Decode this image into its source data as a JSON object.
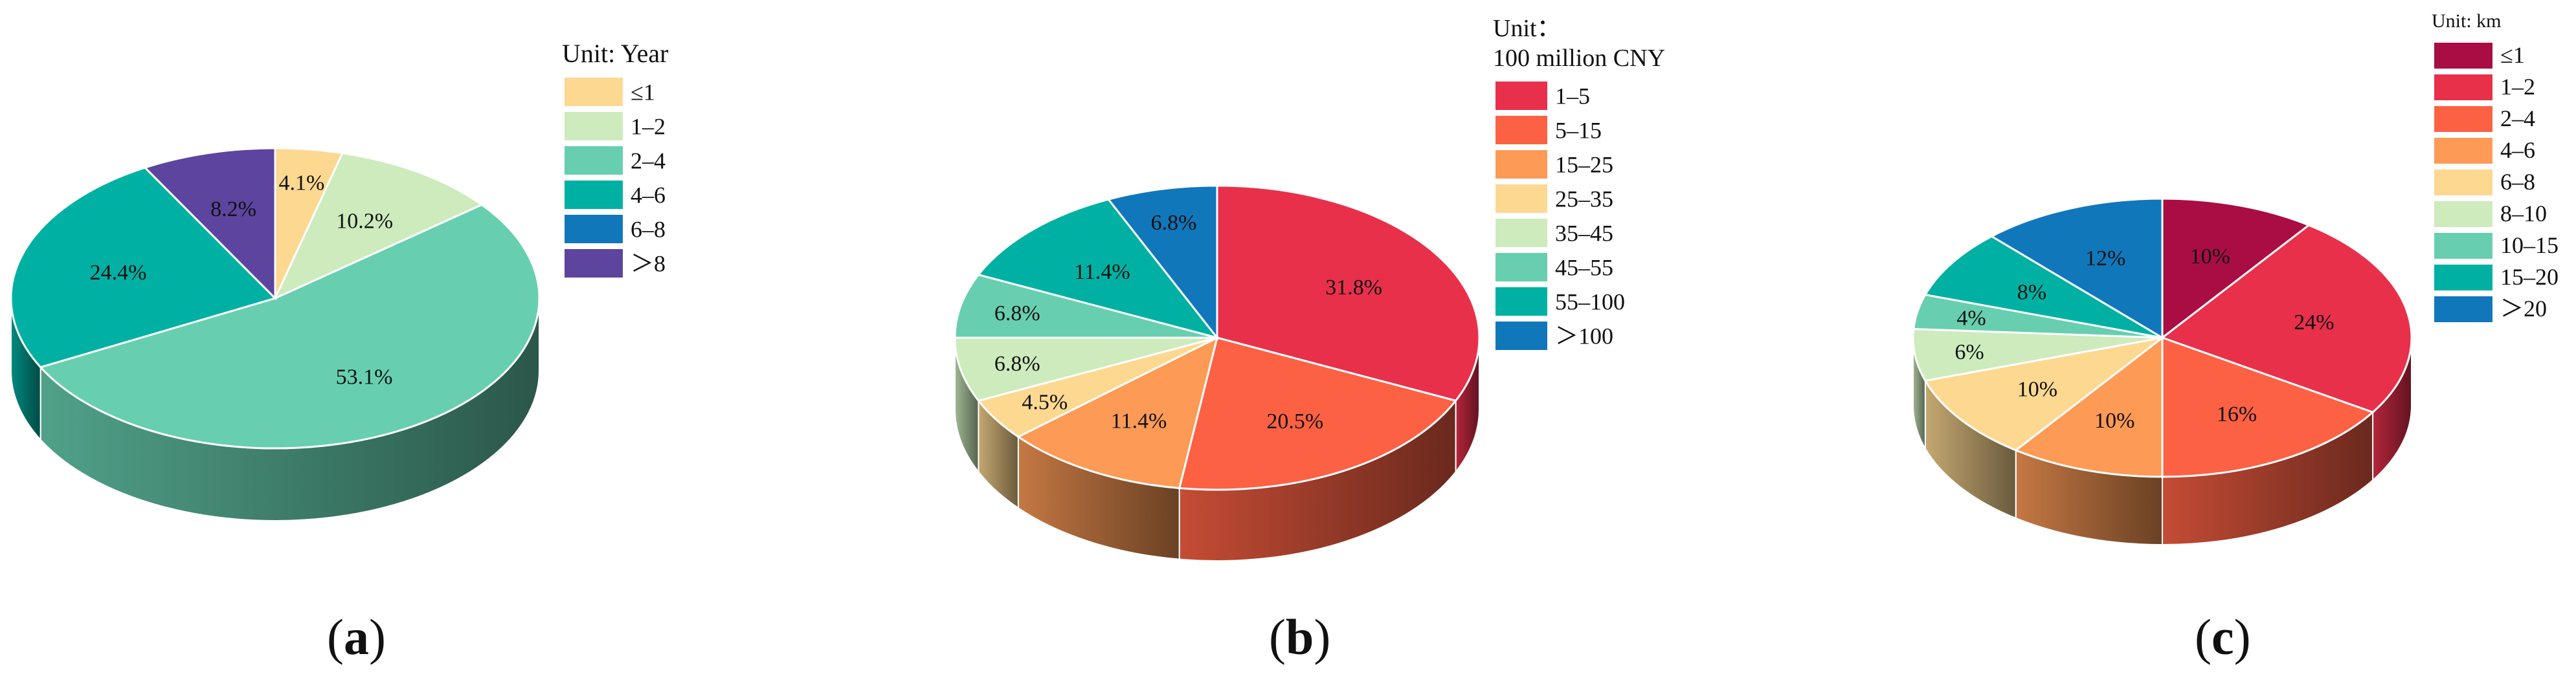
{
  "chart_data": [
    {
      "type": "pie",
      "panel_label": "a",
      "legend_title": "Unit: Year",
      "legend_title_lines": [
        "Unit: Year"
      ],
      "legend_placement": "top-right",
      "categories": [
        "≤1",
        "1–2",
        "2–4",
        "4–6",
        "6–8",
        "＞8"
      ],
      "values": [
        4.1,
        10.2,
        53.1,
        24.4,
        0,
        8.2
      ],
      "data_labels": [
        "4.1%",
        "10.2%",
        "53.1%",
        "24.4%",
        "",
        "8.2%"
      ],
      "colors": [
        "#FDD891",
        "#CDEBBC",
        "#67CFAF",
        "#00B1A3",
        "#1177BB",
        "#5D449F"
      ]
    },
    {
      "type": "pie",
      "panel_label": "b",
      "legend_title": "Unit：100 million CNY",
      "legend_title_lines": [
        "Unit：",
        "100 million CNY"
      ],
      "legend_placement": "top-right",
      "categories": [
        "1–5",
        "5–15",
        "15–25",
        "25–35",
        "35–45",
        "45–55",
        "55–100",
        "＞100"
      ],
      "values": [
        31.8,
        20.5,
        11.4,
        4.5,
        6.8,
        6.8,
        11.4,
        6.8
      ],
      "data_labels": [
        "31.8%",
        "20.5%",
        "11.4%",
        "4.5%",
        "6.8%",
        "6.8%",
        "11.4%",
        "6.8%"
      ],
      "colors": [
        "#E8304B",
        "#FD6144",
        "#FD9A56",
        "#FDD891",
        "#CDEBBC",
        "#67CFAF",
        "#00B1A3",
        "#1177BB"
      ]
    },
    {
      "type": "pie",
      "panel_label": "c",
      "legend_title": "Unit: km",
      "legend_title_lines": [
        "Unit: km"
      ],
      "legend_placement": "top-right",
      "categories": [
        "≤1",
        "1–2",
        "2–4",
        "4–6",
        "6–8",
        "8–10",
        "10–15",
        "15–20",
        "＞20"
      ],
      "values": [
        10,
        24,
        16,
        10,
        10,
        6,
        4,
        8,
        12
      ],
      "data_labels": [
        "10%",
        "24%",
        "16%",
        "10%",
        "10%",
        "6%",
        "4%",
        "8%",
        "12%"
      ],
      "colors": [
        "#A90D43",
        "#E8304B",
        "#FD6144",
        "#FD9A56",
        "#FDD891",
        "#CDEBBC",
        "#67CFAF",
        "#00B1A3",
        "#1177BB"
      ]
    }
  ]
}
